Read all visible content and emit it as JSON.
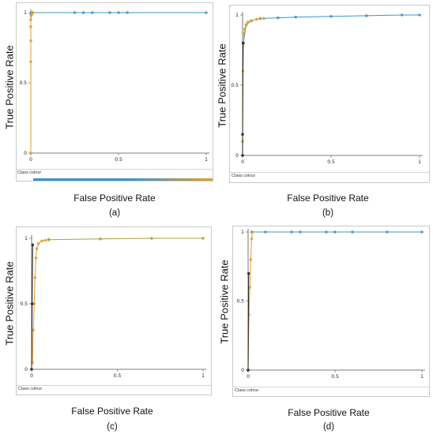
{
  "colors": {
    "class_blue": "#3d94cc",
    "class_orange": "#e29e2a",
    "class_olive": "#a8a23a",
    "diagonal": "#222222"
  },
  "class_colour_label": "Class colour",
  "y_axis_label": "True Positive Rate",
  "y_axis_label_c": "True  Positive Rate",
  "x_axis_label": "False Positive Rate",
  "chart_data": [
    {
      "panel": "(a)",
      "type": "line",
      "xlabel": "False Positive Rate",
      "ylabel": "True Positive Rate",
      "xlim": [
        0,
        1
      ],
      "ylim": [
        0,
        1
      ],
      "x_ticks": [
        "0",
        "0.5",
        "1"
      ],
      "y_ticks": [
        "0",
        "0.5",
        "1"
      ],
      "grid": false,
      "series": [
        {
          "color": "#3d94cc",
          "x": [
            0,
            0.005,
            0.01,
            0.25,
            0.3,
            0.35,
            0.45,
            0.5,
            0.55,
            1
          ],
          "y": [
            0.99,
            0.995,
            1,
            1,
            1,
            1,
            1,
            1,
            1,
            1
          ]
        },
        {
          "color": "#e29e2a",
          "x": [
            0,
            0,
            0,
            0,
            0,
            0.003,
            0.006,
            0.01
          ],
          "y": [
            0,
            0.65,
            0.8,
            0.9,
            0.95,
            0.98,
            0.99,
            1
          ]
        }
      ]
    },
    {
      "panel": "(b)",
      "type": "line",
      "xlabel": "False Positive Rate",
      "ylabel": "True Positive Rate",
      "xlim": [
        0,
        1
      ],
      "ylim": [
        0,
        1
      ],
      "x_ticks": [
        "0",
        "0.5",
        "1"
      ],
      "y_ticks": [
        "0",
        "0.5",
        "1"
      ],
      "grid": false,
      "series": [
        {
          "color": "#3d94cc",
          "x": [
            0.005,
            0.02,
            0.05,
            0.1,
            0.2,
            0.3,
            0.5,
            0.7,
            0.9,
            1
          ],
          "y": [
            0.8,
            0.93,
            0.96,
            0.975,
            0.98,
            0.985,
            0.99,
            0.995,
            1,
            1
          ]
        },
        {
          "color": "#e29e2a",
          "x": [
            0,
            0.002,
            0.005,
            0.008,
            0.012,
            0.02,
            0.03,
            0.05,
            0.08,
            0.12
          ],
          "y": [
            0.1,
            0.6,
            0.8,
            0.87,
            0.9,
            0.93,
            0.95,
            0.96,
            0.97,
            0.975
          ]
        },
        {
          "color": "#222222",
          "x": [
            0,
            0,
            0.003
          ],
          "y": [
            0,
            0.15,
            0.8
          ]
        }
      ]
    },
    {
      "panel": "(c)",
      "type": "line",
      "xlabel": "False Positive Rate",
      "ylabel": "True  Positive Rate",
      "xlim": [
        0,
        1
      ],
      "ylim": [
        0,
        1
      ],
      "x_ticks": [
        "0",
        "0.5",
        "1"
      ],
      "y_ticks": [
        "0",
        "0.5",
        "1"
      ],
      "grid": false,
      "series": [
        {
          "color": "#e29e2a",
          "x": [
            0.005,
            0.01,
            0.015,
            0.02,
            0.025,
            0.03,
            0.04,
            0.06,
            0.08,
            0.1
          ],
          "y": [
            0.05,
            0.3,
            0.5,
            0.7,
            0.85,
            0.92,
            0.96,
            0.98,
            0.985,
            0.99
          ]
        },
        {
          "color": "#a8a23a",
          "x": [
            0.1,
            0.4,
            0.7,
            1
          ],
          "y": [
            0.99,
            0.995,
            1,
            1
          ]
        },
        {
          "color": "#222222",
          "x": [
            0,
            0.003,
            0.006
          ],
          "y": [
            0,
            0.5,
            0.95
          ]
        }
      ]
    },
    {
      "panel": "(d)",
      "type": "line",
      "xlabel": "False Positive Rate",
      "ylabel": "True Positive Rate",
      "xlim": [
        0,
        1
      ],
      "ylim": [
        0,
        1
      ],
      "x_ticks": [
        "0",
        "0.5",
        "1"
      ],
      "y_ticks": [
        "0",
        "0.5",
        "1"
      ],
      "grid": false,
      "series": [
        {
          "color": "#3d94cc",
          "x": [
            0.02,
            0.1,
            0.25,
            0.3,
            0.45,
            0.5,
            0.6,
            0.8,
            1
          ],
          "y": [
            1,
            1,
            1,
            1,
            1,
            1,
            1,
            1,
            1
          ]
        },
        {
          "color": "#e29e2a",
          "x": [
            0,
            0.005,
            0.01,
            0.015,
            0.02,
            0.025
          ],
          "y": [
            0,
            0.4,
            0.6,
            0.8,
            0.95,
            1
          ]
        },
        {
          "color": "#222222",
          "x": [
            0,
            0.003
          ],
          "y": [
            0,
            0.7
          ]
        }
      ]
    }
  ]
}
